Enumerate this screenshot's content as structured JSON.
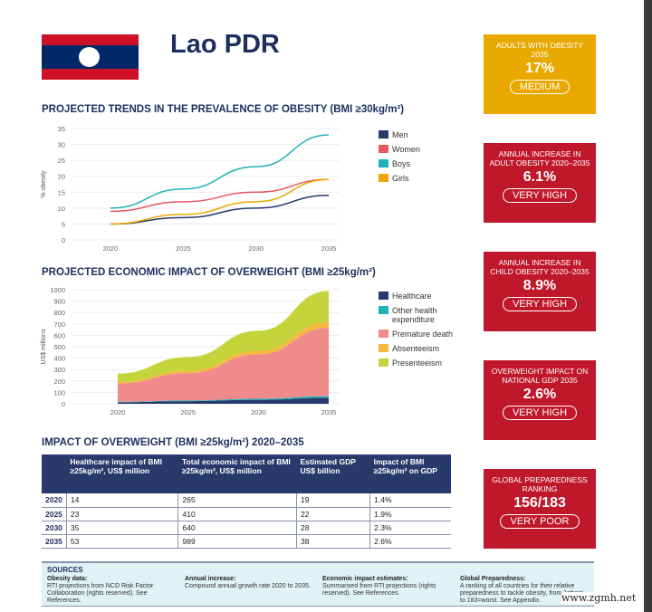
{
  "header": {
    "title": "Lao PDR"
  },
  "sections": {
    "trends": "PROJECTED TRENDS IN THE PREVALENCE OF OBESITY (BMI ≥30kg/m²)",
    "economic": "PROJECTED ECONOMIC IMPACT OF OVERWEIGHT (BMI ≥25kg/m²)",
    "impact": "IMPACT OF OVERWEIGHT (BMI ≥25kg/m²) 2020–2035"
  },
  "indicators": [
    {
      "label": "ADULTS WITH OBESITY 2035",
      "value": "17%",
      "rating": "MEDIUM",
      "color": "#e8a800"
    },
    {
      "label": "ANNUAL INCREASE IN ADULT OBESITY 2020–2035",
      "value": "6.1%",
      "rating": "VERY HIGH",
      "color": "#c0182b"
    },
    {
      "label": "ANNUAL INCREASE IN CHILD OBESITY 2020–2035",
      "value": "8.9%",
      "rating": "VERY HIGH",
      "color": "#c0182b"
    },
    {
      "label": "OVERWEIGHT IMPACT ON NATIONAL GDP 2035",
      "value": "2.6%",
      "rating": "VERY HIGH",
      "color": "#c0182b"
    },
    {
      "label": "GLOBAL PREPAREDNESS RANKING",
      "value": "156/183",
      "rating": "VERY POOR",
      "color": "#c0182b"
    }
  ],
  "chart_data": [
    {
      "type": "line",
      "title": "PROJECTED TRENDS IN THE PREVALENCE OF OBESITY (BMI ≥30kg/m²)",
      "ylabel": "% obesity",
      "xlabel": "",
      "x": [
        2020,
        2025,
        2030,
        2035
      ],
      "ylim": [
        0,
        35
      ],
      "yticks": [
        0,
        5,
        10,
        15,
        20,
        25,
        30,
        35
      ],
      "legend": "right",
      "grid": true,
      "series": [
        {
          "name": "Men",
          "color": "#283a6b",
          "values": [
            5,
            7,
            10,
            14
          ]
        },
        {
          "name": "Women",
          "color": "#e8585f",
          "values": [
            9,
            12,
            15,
            19
          ]
        },
        {
          "name": "Boys",
          "color": "#1fb2b8",
          "values": [
            10,
            16,
            23,
            33
          ]
        },
        {
          "name": "Girls",
          "color": "#e8a800",
          "values": [
            5,
            8,
            12,
            19
          ]
        }
      ]
    },
    {
      "type": "area",
      "title": "PROJECTED ECONOMIC IMPACT OF OVERWEIGHT (BMI ≥25kg/m²)",
      "ylabel": "US$ millions",
      "xlabel": "",
      "x": [
        2020,
        2025,
        2030,
        2035
      ],
      "ylim": [
        0,
        1000
      ],
      "yticks": [
        0,
        100,
        200,
        300,
        400,
        500,
        600,
        700,
        800,
        900,
        1000
      ],
      "legend": "right",
      "grid": true,
      "series": [
        {
          "name": "Healthcare",
          "color": "#283a6b",
          "values": [
            14,
            23,
            35,
            53
          ]
        },
        {
          "name": "Other health expenditure",
          "color": "#1fb2b8",
          "values": [
            4,
            6,
            9,
            13
          ]
        },
        {
          "name": "Premature death",
          "color": "#ef8b8b",
          "values": [
            160,
            240,
            390,
            600
          ]
        },
        {
          "name": "Absenteeism",
          "color": "#f5b942",
          "values": [
            12,
            20,
            30,
            50
          ]
        },
        {
          "name": "Presenteeism",
          "color": "#c5d43a",
          "values": [
            75,
            121,
            176,
            273
          ]
        }
      ]
    }
  ],
  "table": {
    "headers": [
      "",
      "Healthcare impact of BMI ≥25kg/m², US$ million",
      "Total economic impact of BMI ≥25kg/m², US$ million",
      "Estimated GDP US$ billion",
      "Impact of BMI ≥25kg/m² on GDP"
    ],
    "rows": [
      [
        "2020",
        "14",
        "265",
        "19",
        "1.4%"
      ],
      [
        "2025",
        "23",
        "410",
        "22",
        "1.9%"
      ],
      [
        "2030",
        "35",
        "640",
        "28",
        "2.3%"
      ],
      [
        "2035",
        "53",
        "989",
        "38",
        "2.6%"
      ]
    ]
  },
  "sources": {
    "title": "SOURCES",
    "items": [
      {
        "head": "Obesity data:",
        "text": "RTI projections from NCD Risk Factor Collaboration (rights reserved). See References."
      },
      {
        "head": "Annual increase:",
        "text": "Compound annual growth rate 2020 to 2035."
      },
      {
        "head": "Economic impact estimates:",
        "text": "Summarised from RTI projections (rights reserved). See References."
      },
      {
        "head": "Global Preparedness:",
        "text": "A ranking of all countries for their relative preparedness to tackle obesity, from 1=best to 183=worst. See Appendix."
      }
    ]
  },
  "watermark": "www.zgmh.net"
}
